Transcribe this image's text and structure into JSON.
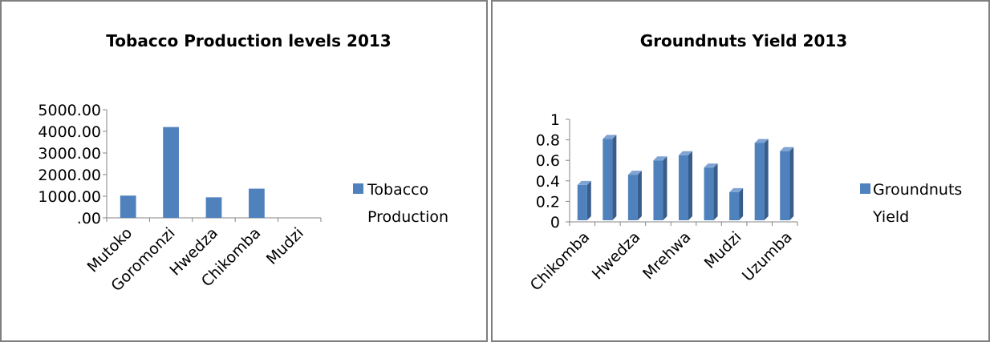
{
  "chart_data": [
    {
      "type": "bar",
      "title": "Tobacco Production levels 2013",
      "categories": [
        "Mutoko",
        "Goromonzi",
        "Hwedza",
        "Chikomba",
        "Mudzi"
      ],
      "series": [
        {
          "name": "Tobacco Production",
          "values": [
            1030,
            4200,
            950,
            1350,
            0
          ]
        }
      ],
      "ylim": [
        0,
        5000
      ],
      "yticks": [
        ".00",
        "1000.00",
        "2000.00",
        "3000.00",
        "4000.00",
        "5000.00"
      ],
      "ytick_values": [
        0,
        1000,
        2000,
        3000,
        4000,
        5000
      ],
      "legend_lines": [
        "Tobacco",
        "Production"
      ],
      "legend": "right",
      "grid": false,
      "color": "#4F81BD"
    },
    {
      "type": "bar",
      "title": "Groundnuts Yield 2013",
      "categories": [
        "Chikomba",
        "",
        "Hwedza",
        "",
        "Mrehwa",
        "",
        "Mudzi",
        "",
        "Uzumba"
      ],
      "series": [
        {
          "name": "Groundnuts Yield",
          "values": [
            0.36,
            0.81,
            0.46,
            0.6,
            0.65,
            0.53,
            0.29,
            0.77,
            0.69
          ]
        }
      ],
      "ylim": [
        0,
        1
      ],
      "yticks": [
        "0",
        "0.2",
        "0.4",
        "0.6",
        "0.8",
        "1"
      ],
      "ytick_values": [
        0,
        0.2,
        0.4,
        0.6,
        0.8,
        1.0
      ],
      "legend_lines": [
        "Groundnuts",
        "Yield"
      ],
      "legend": "right",
      "grid": false,
      "style": "3d",
      "color": "#4F81BD"
    }
  ]
}
